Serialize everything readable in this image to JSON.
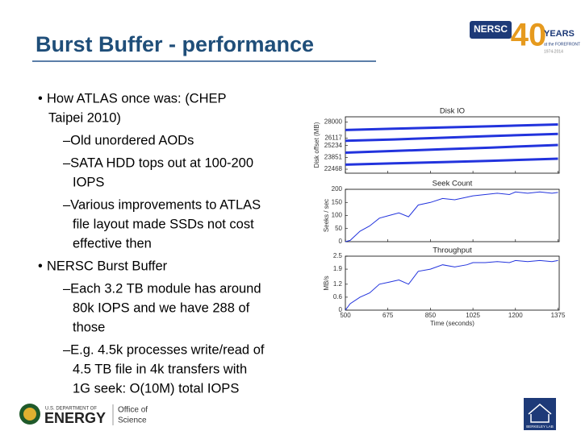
{
  "header": {
    "title": "Burst Buffer - performance",
    "logo": {
      "name": "NERSC",
      "number": "40",
      "years": "YEARS",
      "tagline": "at the FOREFRONT",
      "span": "1974-2014"
    }
  },
  "bullets": [
    {
      "level": 1,
      "lines": [
        "How ATLAS once was: (CHEP",
        "Taipei 2010)"
      ]
    },
    {
      "level": 2,
      "lines": [
        "–Old unordered AODs"
      ]
    },
    {
      "level": 2,
      "lines": [
        "–SATA HDD tops out at 100-200",
        "IOPS"
      ]
    },
    {
      "level": 2,
      "lines": [
        "–Various improvements to ATLAS",
        "file layout made SSDs not cost",
        "effective then"
      ]
    },
    {
      "level": 1,
      "lines": [
        "NERSC Burst Buffer"
      ]
    },
    {
      "level": 2,
      "lines": [
        "–Each 3.2 TB module has around",
        "80k IOPS and we have 288 of",
        "those"
      ]
    },
    {
      "level": 2,
      "lines": [
        "–E.g. 4.5k processes write/read of",
        "4.5 TB file in 4k transfers with",
        "1G seek:  O(10M) total IOPS"
      ]
    }
  ],
  "figure": {
    "xlabel": "Time (seconds)",
    "xlim": [
      500,
      1380
    ],
    "xticks": [
      500,
      675,
      850,
      1025,
      1200,
      1375
    ],
    "panels": [
      {
        "type": "line",
        "title": "Disk IO",
        "ylabel": "Disk offset (MB)",
        "ylim": [
          22000,
          28600
        ],
        "yticks": [
          22468,
          23851,
          25234,
          26117,
          28000
        ],
        "color": "#2233dd",
        "x": [
          500,
          700,
          900,
          1100,
          1375
        ],
        "series": [
          {
            "values": [
              27050,
              27200,
              27350,
              27500,
              27700
            ]
          },
          {
            "values": [
              25800,
              25950,
              26150,
              26350,
              26600
            ]
          },
          {
            "values": [
              24400,
              24600,
              24800,
              25000,
              25300
            ]
          },
          {
            "values": [
              23000,
              23150,
              23300,
              23450,
              23700
            ]
          }
        ]
      },
      {
        "type": "line",
        "title": "Seek Count",
        "ylabel": "Seeks / sec",
        "ylim": [
          0,
          200
        ],
        "yticks": [
          0,
          50,
          100,
          150,
          200
        ],
        "color": "#2233dd",
        "x": [
          500,
          520,
          560,
          600,
          640,
          680,
          720,
          760,
          800,
          850,
          900,
          950,
          1000,
          1025,
          1075,
          1125,
          1175,
          1200,
          1250,
          1300,
          1350,
          1375
        ],
        "series": [
          {
            "values": [
              0,
              5,
              40,
              60,
              90,
              100,
              110,
              95,
              140,
              150,
              165,
              160,
              170,
              175,
              180,
              185,
              180,
              190,
              185,
              190,
              185,
              188
            ]
          }
        ]
      },
      {
        "type": "line",
        "title": "Throughput",
        "ylabel": "MB/s",
        "ylim": [
          0,
          2.5
        ],
        "yticks": [
          0,
          0.6,
          1.2,
          1.9,
          2.5
        ],
        "color": "#2233dd",
        "x": [
          500,
          520,
          560,
          600,
          640,
          680,
          720,
          760,
          800,
          850,
          900,
          950,
          1000,
          1025,
          1075,
          1125,
          1175,
          1200,
          1250,
          1300,
          1350,
          1375
        ],
        "series": [
          {
            "values": [
              0,
              0.3,
              0.6,
              0.8,
              1.2,
              1.3,
              1.4,
              1.2,
              1.8,
              1.9,
              2.1,
              2.0,
              2.1,
              2.2,
              2.2,
              2.25,
              2.2,
              2.3,
              2.25,
              2.3,
              2.25,
              2.3
            ]
          }
        ]
      }
    ]
  },
  "footer": {
    "doe": "U.S. DEPARTMENT OF",
    "energy": "ENERGY",
    "office1": "Office of",
    "office2": "Science",
    "lab": "BERKELEY LAB"
  }
}
